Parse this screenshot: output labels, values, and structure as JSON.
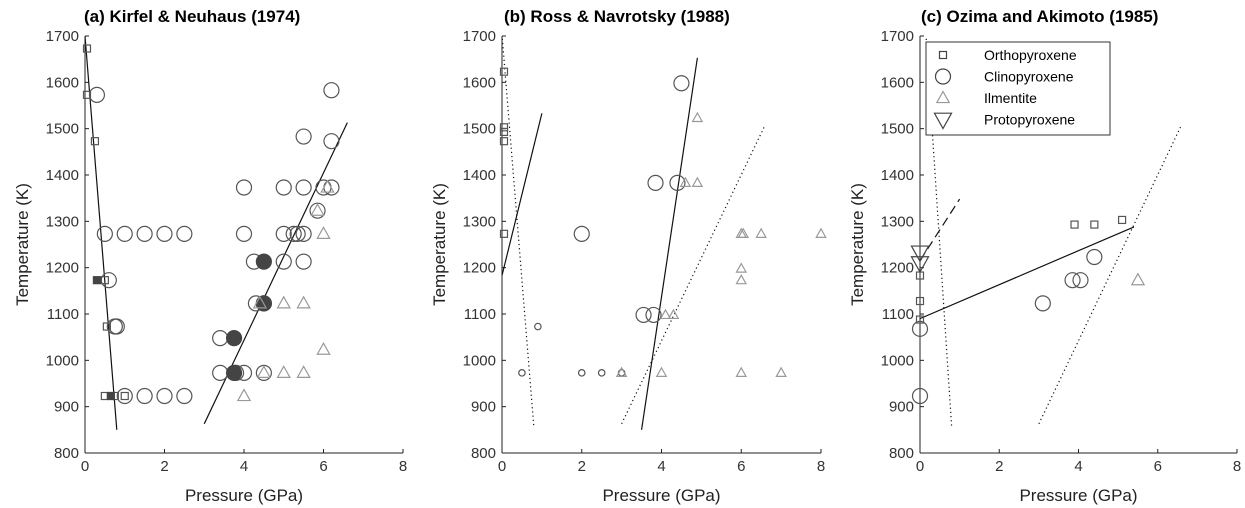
{
  "chart_data": [
    {
      "type": "scatter",
      "title": "(a) Kirfel & Neuhaus (1974)",
      "xlabel": "Pressure (GPa)",
      "ylabel": "Temperature (K)",
      "xlim": [
        0,
        8
      ],
      "ylim": [
        800,
        1700
      ],
      "xticks": [
        "0",
        "2",
        "4",
        "6",
        "8"
      ],
      "yticks": [
        "800",
        "900",
        "1000",
        "1100",
        "1200",
        "1300",
        "1400",
        "1500",
        "1600",
        "1700"
      ],
      "series": [
        {
          "marker": "square",
          "size": "small",
          "color": "#555555",
          "fill": "none",
          "points": [
            [
              0.05,
              1673
            ],
            [
              0.05,
              1573
            ],
            [
              0.25,
              1473
            ],
            [
              0.5,
              1173
            ],
            [
              0.55,
              1073
            ],
            [
              0.5,
              923
            ],
            [
              0.75,
              923
            ],
            [
              1.0,
              923
            ]
          ]
        },
        {
          "marker": "square",
          "size": "small",
          "color": "#444444",
          "fill": "#444444",
          "points": [
            [
              0.3,
              1173
            ],
            [
              0.65,
              923
            ]
          ]
        },
        {
          "marker": "circle",
          "size": "large",
          "color": "#555555",
          "fill": "none",
          "points": [
            [
              0.3,
              1573
            ],
            [
              0.5,
              1273
            ],
            [
              0.6,
              1173
            ],
            [
              0.8,
              1073
            ],
            [
              0.75,
              1073
            ],
            [
              1.0,
              923
            ],
            [
              1.0,
              1273
            ],
            [
              1.5,
              1273
            ],
            [
              2.0,
              1273
            ],
            [
              2.5,
              1273
            ],
            [
              1.5,
              923
            ],
            [
              2.0,
              923
            ],
            [
              2.5,
              923
            ],
            [
              3.4,
              1048
            ],
            [
              3.4,
              973
            ],
            [
              3.8,
              973
            ],
            [
              4.0,
              973
            ],
            [
              4.0,
              1373
            ],
            [
              4.0,
              1273
            ],
            [
              4.25,
              1213
            ],
            [
              4.3,
              1123
            ],
            [
              4.5,
              1123
            ],
            [
              4.5,
              973
            ],
            [
              5.0,
              1373
            ],
            [
              5.0,
              1273
            ],
            [
              5.0,
              1213
            ],
            [
              5.25,
              1273
            ],
            [
              5.35,
              1273
            ],
            [
              5.5,
              1483
            ],
            [
              5.5,
              1373
            ],
            [
              5.5,
              1273
            ],
            [
              5.5,
              1213
            ],
            [
              5.85,
              1323
            ],
            [
              6.0,
              1373
            ],
            [
              6.2,
              1583
            ],
            [
              6.2,
              1473
            ],
            [
              6.2,
              1373
            ]
          ]
        },
        {
          "marker": "circle",
          "size": "large",
          "color": "#444444",
          "fill": "#444444",
          "points": [
            [
              3.75,
              1048
            ],
            [
              3.75,
              973
            ],
            [
              4.5,
              1213
            ],
            [
              4.5,
              1123
            ]
          ]
        },
        {
          "marker": "triangle-up",
          "size": "medium",
          "color": "#999999",
          "fill": "none",
          "points": [
            [
              4.0,
              923
            ],
            [
              4.4,
              1123
            ],
            [
              4.5,
              973
            ],
            [
              5.0,
              1123
            ],
            [
              5.0,
              973
            ],
            [
              5.5,
              1123
            ],
            [
              5.5,
              973
            ],
            [
              5.85,
              1323
            ],
            [
              6.0,
              1273
            ],
            [
              6.0,
              1023
            ],
            [
              6.1,
              1373
            ]
          ]
        }
      ],
      "lines": [
        {
          "style": "solid",
          "points": [
            [
              0.0,
              1700
            ],
            [
              0.8,
              850
            ]
          ]
        },
        {
          "style": "solid",
          "points": [
            [
              3.0,
              863
            ],
            [
              6.6,
              1513
            ]
          ]
        }
      ]
    },
    {
      "type": "scatter",
      "title": "(b) Ross & Navrotsky (1988)",
      "xlabel": "Pressure (GPa)",
      "ylabel": "Temperature (K)",
      "xlim": [
        0,
        8
      ],
      "ylim": [
        800,
        1700
      ],
      "xticks": [
        "0",
        "2",
        "4",
        "6",
        "8"
      ],
      "yticks": [
        "800",
        "900",
        "1000",
        "1100",
        "1200",
        "1300",
        "1400",
        "1500",
        "1600",
        "1700"
      ],
      "series": [
        {
          "marker": "square",
          "size": "small",
          "color": "#555555",
          "fill": "none",
          "points": [
            [
              0.05,
              1623
            ],
            [
              0.05,
              1503
            ],
            [
              0.05,
              1493
            ],
            [
              0.05,
              1473
            ],
            [
              0.05,
              1273
            ]
          ]
        },
        {
          "marker": "circle",
          "size": "small",
          "color": "#555555",
          "fill": "none",
          "points": [
            [
              0.9,
              1073
            ],
            [
              0.5,
              973
            ],
            [
              2.0,
              973
            ],
            [
              2.5,
              973
            ],
            [
              3.0,
              973
            ]
          ]
        },
        {
          "marker": "circle",
          "size": "large",
          "color": "#555555",
          "fill": "none",
          "points": [
            [
              2.0,
              1273
            ],
            [
              3.55,
              1098
            ],
            [
              3.8,
              1098
            ],
            [
              3.85,
              1383
            ],
            [
              4.4,
              1383
            ],
            [
              4.5,
              1598
            ]
          ]
        },
        {
          "marker": "triangle-up",
          "size": "small",
          "color": "#999999",
          "fill": "none",
          "points": [
            [
              3.0,
              973
            ],
            [
              4.0,
              973
            ],
            [
              4.1,
              1098
            ],
            [
              4.3,
              1098
            ],
            [
              4.6,
              1383
            ],
            [
              4.9,
              1383
            ],
            [
              4.9,
              1523
            ],
            [
              6.0,
              1273
            ],
            [
              6.05,
              1273
            ],
            [
              6.5,
              1273
            ],
            [
              6.0,
              1198
            ],
            [
              6.0,
              1173
            ],
            [
              6.0,
              973
            ],
            [
              7.0,
              973
            ],
            [
              8.0,
              1273
            ]
          ]
        }
      ],
      "lines": [
        {
          "style": "solid",
          "points": [
            [
              0.0,
              1183
            ],
            [
              1.0,
              1533
            ]
          ]
        },
        {
          "style": "solid",
          "points": [
            [
              3.5,
              850
            ],
            [
              4.9,
              1653
            ]
          ]
        },
        {
          "style": "dotted",
          "points": [
            [
              0.0,
              1703
            ],
            [
              0.8,
              855
            ]
          ]
        },
        {
          "style": "dotted",
          "points": [
            [
              3.0,
              863
            ],
            [
              6.6,
              1508
            ]
          ]
        }
      ]
    },
    {
      "type": "scatter",
      "title": "(c) Ozima and Akimoto (1985)",
      "xlabel": "Pressure (GPa)",
      "ylabel": "Temperature (K)",
      "xlim": [
        0,
        8
      ],
      "ylim": [
        800,
        1700
      ],
      "xticks": [
        "0",
        "2",
        "4",
        "6",
        "8"
      ],
      "yticks": [
        "800",
        "900",
        "1000",
        "1100",
        "1200",
        "1300",
        "1400",
        "1500",
        "1600",
        "1700"
      ],
      "legend": {
        "position": "top-left",
        "entries": [
          {
            "label": "Orthopyroxene",
            "marker": "square"
          },
          {
            "label": "Clinopyroxene",
            "marker": "circle"
          },
          {
            "label": "Ilmentite",
            "marker": "triangle-up"
          },
          {
            "label": "Protopyroxene",
            "marker": "triangle-down"
          }
        ]
      },
      "series": [
        {
          "marker": "square",
          "size": "small",
          "color": "#555555",
          "fill": "none",
          "points": [
            [
              0.0,
              1183
            ],
            [
              0.0,
              1128
            ],
            [
              0.0,
              1088
            ],
            [
              3.9,
              1293
            ],
            [
              4.4,
              1293
            ],
            [
              5.1,
              1303
            ]
          ]
        },
        {
          "marker": "circle",
          "size": "large",
          "color": "#555555",
          "fill": "none",
          "points": [
            [
              0.0,
              1068
            ],
            [
              0.0,
              923
            ],
            [
              3.1,
              1123
            ],
            [
              3.85,
              1173
            ],
            [
              4.05,
              1173
            ],
            [
              4.4,
              1223
            ]
          ]
        },
        {
          "marker": "triangle-up",
          "size": "medium",
          "color": "#999999",
          "fill": "none",
          "points": [
            [
              5.5,
              1173
            ]
          ]
        },
        {
          "marker": "triangle-down",
          "size": "large",
          "color": "#444444",
          "fill": "none",
          "points": [
            [
              0.0,
              1233
            ],
            [
              0.0,
              1210
            ]
          ]
        }
      ],
      "lines": [
        {
          "style": "solid",
          "points": [
            [
              0.0,
              1090
            ],
            [
              5.4,
              1288
            ]
          ]
        },
        {
          "style": "dashed",
          "points": [
            [
              0.0,
              1215
            ],
            [
              1.0,
              1348
            ]
          ]
        },
        {
          "style": "dotted",
          "points": [
            [
              0.15,
              1703
            ],
            [
              0.8,
              855
            ]
          ]
        },
        {
          "style": "dotted",
          "points": [
            [
              3.0,
              863
            ],
            [
              6.6,
              1508
            ]
          ]
        }
      ]
    }
  ]
}
